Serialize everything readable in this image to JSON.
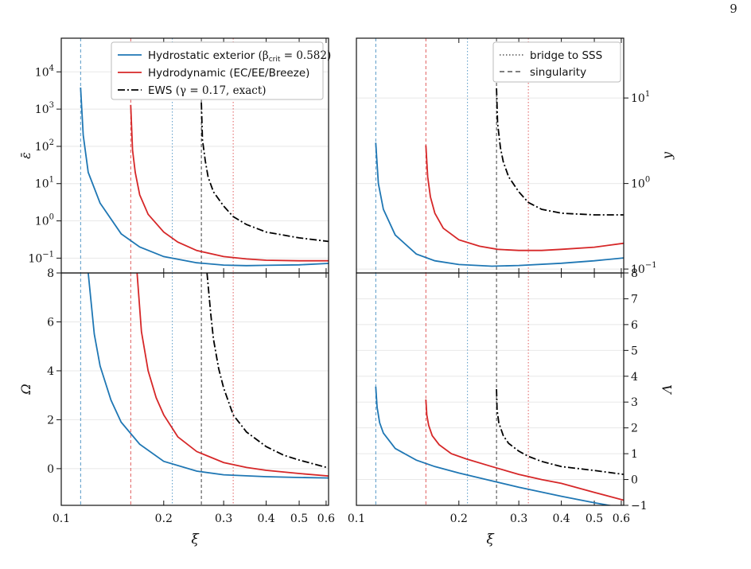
{
  "page": {
    "number": "9"
  },
  "colors": {
    "hydrostatic": "#1f77b4",
    "hydrodynamic": "#d62728",
    "ews": "#000000",
    "grid": "#e6e6e6"
  },
  "legend_left": {
    "entries": [
      {
        "name": "Hydrostatic exterior",
        "math": "(β",
        "sub": "crit",
        "math_tail": " = 0.582)",
        "style": "solid",
        "color": "#1f77b4"
      },
      {
        "name": "Hydrodynamic (EC/EE/Breeze)",
        "style": "solid",
        "color": "#d62728"
      },
      {
        "name": "EWS",
        "math": "(γ = 0.17, exact)",
        "style": "dashdot",
        "color": "#000000"
      }
    ]
  },
  "legend_right": {
    "entries": [
      {
        "name": "bridge to SSS",
        "style": "dotted"
      },
      {
        "name": "singularity",
        "style": "dashed"
      }
    ]
  },
  "chart_data": [
    {
      "type": "line",
      "panel": "top-left",
      "xlabel": "",
      "ylabel": "ε̄",
      "xscale": "log",
      "yscale": "log",
      "xlim": [
        0.1,
        0.61
      ],
      "ylim": [
        0.04,
        80000
      ],
      "yticks": [
        {
          "v": 0.1,
          "e": "−1"
        },
        {
          "v": 1,
          "e": "0"
        },
        {
          "v": 10,
          "e": "1"
        },
        {
          "v": 100,
          "e": "2"
        },
        {
          "v": 1000,
          "e": "3"
        },
        {
          "v": 10000,
          "e": "4"
        }
      ],
      "series": [
        {
          "name": "Hydrostatic exterior",
          "color": "#1f77b4",
          "style": "solid",
          "x": [
            0.114,
            0.116,
            0.12,
            0.13,
            0.15,
            0.17,
            0.2,
            0.25,
            0.3,
            0.35,
            0.4,
            0.5,
            0.61
          ],
          "y": [
            3800,
            200,
            20,
            3.0,
            0.45,
            0.2,
            0.11,
            0.075,
            0.065,
            0.063,
            0.064,
            0.066,
            0.072
          ]
        },
        {
          "name": "Hydrodynamic (EC/EE/Breeze)",
          "color": "#d62728",
          "style": "solid",
          "x": [
            0.16,
            0.162,
            0.165,
            0.17,
            0.18,
            0.2,
            0.22,
            0.25,
            0.3,
            0.35,
            0.4,
            0.5,
            0.61
          ],
          "y": [
            1300,
            80,
            20,
            5,
            1.5,
            0.5,
            0.27,
            0.16,
            0.11,
            0.095,
            0.088,
            0.085,
            0.085
          ]
        },
        {
          "name": "EWS",
          "color": "#000000",
          "style": "dashdot",
          "x": [
            0.258,
            0.26,
            0.265,
            0.27,
            0.28,
            0.3,
            0.32,
            0.35,
            0.4,
            0.5,
            0.61
          ],
          "y": [
            1500,
            150,
            40,
            15,
            6,
            2.5,
            1.3,
            0.8,
            0.5,
            0.35,
            0.28
          ]
        }
      ],
      "vlines": [
        {
          "x": 0.114,
          "color": "#1f77b4",
          "style": "dashed"
        },
        {
          "x": 0.16,
          "color": "#d62728",
          "style": "dashed"
        },
        {
          "x": 0.212,
          "color": "#1f77b4",
          "style": "dotted"
        },
        {
          "x": 0.258,
          "color": "#000000",
          "style": "dashed"
        },
        {
          "x": 0.32,
          "color": "#d62728",
          "style": "dotted"
        }
      ]
    },
    {
      "type": "line",
      "panel": "top-right",
      "xlabel": "",
      "ylabel": "y",
      "xscale": "log",
      "yscale": "log",
      "xlim": [
        0.1,
        0.61
      ],
      "ylim": [
        0.09,
        50
      ],
      "yticks": [
        {
          "v": 0.1,
          "e": "−1"
        },
        {
          "v": 1,
          "e": "0"
        },
        {
          "v": 10,
          "e": "1"
        }
      ],
      "series": [
        {
          "name": "Hydrostatic exterior",
          "color": "#1f77b4",
          "style": "solid",
          "x": [
            0.114,
            0.116,
            0.12,
            0.13,
            0.15,
            0.17,
            0.2,
            0.25,
            0.3,
            0.4,
            0.5,
            0.61
          ],
          "y": [
            3.0,
            1.0,
            0.5,
            0.25,
            0.15,
            0.125,
            0.113,
            0.108,
            0.11,
            0.117,
            0.125,
            0.135
          ]
        },
        {
          "name": "Hydrodynamic (EC/EE/Breeze)",
          "color": "#d62728",
          "style": "solid",
          "x": [
            0.16,
            0.162,
            0.165,
            0.17,
            0.18,
            0.2,
            0.23,
            0.26,
            0.3,
            0.35,
            0.4,
            0.5,
            0.61
          ],
          "y": [
            2.8,
            1.2,
            0.7,
            0.45,
            0.3,
            0.22,
            0.185,
            0.17,
            0.165,
            0.165,
            0.17,
            0.18,
            0.2
          ]
        },
        {
          "name": "EWS",
          "color": "#000000",
          "style": "dashdot",
          "x": [
            0.258,
            0.26,
            0.265,
            0.27,
            0.28,
            0.3,
            0.32,
            0.35,
            0.4,
            0.5,
            0.61
          ],
          "y": [
            13,
            5,
            2.6,
            1.8,
            1.2,
            0.8,
            0.6,
            0.5,
            0.45,
            0.43,
            0.43
          ]
        }
      ],
      "vlines": [
        {
          "x": 0.114,
          "color": "#1f77b4",
          "style": "dashed"
        },
        {
          "x": 0.16,
          "color": "#d62728",
          "style": "dashed"
        },
        {
          "x": 0.212,
          "color": "#1f77b4",
          "style": "dotted"
        },
        {
          "x": 0.258,
          "color": "#000000",
          "style": "dashed"
        },
        {
          "x": 0.32,
          "color": "#d62728",
          "style": "dotted"
        }
      ]
    },
    {
      "type": "line",
      "panel": "bottom-left",
      "xlabel": "ξ",
      "ylabel": "Ω",
      "xscale": "log",
      "yscale": "linear",
      "xlim": [
        0.1,
        0.61
      ],
      "ylim": [
        -1.5,
        8
      ],
      "yticks": [
        {
          "v": 0
        },
        {
          "v": 2
        },
        {
          "v": 4
        },
        {
          "v": 6
        },
        {
          "v": 8
        }
      ],
      "xticks": [
        {
          "v": 0.1,
          "t": "0.1"
        },
        {
          "v": 0.2,
          "t": "0.2"
        },
        {
          "v": 0.3,
          "t": "0.3"
        },
        {
          "v": 0.4,
          "t": "0.4"
        },
        {
          "v": 0.5,
          "t": "0.5"
        },
        {
          "v": 0.6,
          "t": "0.6"
        }
      ],
      "series": [
        {
          "name": "Hydrostatic exterior",
          "color": "#1f77b4",
          "style": "solid",
          "x": [
            0.12,
            0.125,
            0.13,
            0.14,
            0.15,
            0.17,
            0.2,
            0.25,
            0.3,
            0.4,
            0.5,
            0.61
          ],
          "y": [
            8,
            5.5,
            4.2,
            2.8,
            1.9,
            1.0,
            0.3,
            -0.1,
            -0.25,
            -0.33,
            -0.36,
            -0.38
          ]
        },
        {
          "name": "Hydrodynamic (EC/EE/Breeze)",
          "color": "#d62728",
          "style": "solid",
          "x": [
            0.167,
            0.172,
            0.18,
            0.19,
            0.2,
            0.22,
            0.25,
            0.3,
            0.35,
            0.4,
            0.5,
            0.61
          ],
          "y": [
            8,
            5.6,
            4.0,
            2.9,
            2.2,
            1.3,
            0.7,
            0.25,
            0.05,
            -0.07,
            -0.2,
            -0.3
          ]
        },
        {
          "name": "EWS",
          "color": "#000000",
          "style": "dashdot",
          "x": [
            0.268,
            0.275,
            0.28,
            0.29,
            0.3,
            0.32,
            0.35,
            0.4,
            0.45,
            0.5,
            0.61
          ],
          "y": [
            8,
            6.3,
            5.3,
            4.1,
            3.3,
            2.2,
            1.5,
            0.9,
            0.55,
            0.35,
            0.03
          ]
        }
      ],
      "vlines": [
        {
          "x": 0.114,
          "color": "#1f77b4",
          "style": "dashed"
        },
        {
          "x": 0.16,
          "color": "#d62728",
          "style": "dashed"
        },
        {
          "x": 0.212,
          "color": "#1f77b4",
          "style": "dotted"
        },
        {
          "x": 0.258,
          "color": "#000000",
          "style": "dashed"
        },
        {
          "x": 0.32,
          "color": "#d62728",
          "style": "dotted"
        }
      ]
    },
    {
      "type": "line",
      "panel": "bottom-right",
      "xlabel": "ξ",
      "ylabel": "Λ",
      "xscale": "log",
      "yscale": "linear",
      "xlim": [
        0.1,
        0.61
      ],
      "ylim": [
        -1,
        8
      ],
      "yticks": [
        {
          "v": -1
        },
        {
          "v": 0
        },
        {
          "v": 1
        },
        {
          "v": 2
        },
        {
          "v": 3
        },
        {
          "v": 4
        },
        {
          "v": 5
        },
        {
          "v": 6
        },
        {
          "v": 7
        },
        {
          "v": 8
        }
      ],
      "xticks": [
        {
          "v": 0.1,
          "t": "0.1"
        },
        {
          "v": 0.2,
          "t": "0.2"
        },
        {
          "v": 0.3,
          "t": "0.3"
        },
        {
          "v": 0.4,
          "t": "0.4"
        },
        {
          "v": 0.5,
          "t": "0.5"
        },
        {
          "v": 0.6,
          "t": "0.6"
        }
      ],
      "series": [
        {
          "name": "Hydrostatic exterior",
          "color": "#1f77b4",
          "style": "solid",
          "x": [
            0.114,
            0.115,
            0.117,
            0.12,
            0.13,
            0.15,
            0.17,
            0.2,
            0.25,
            0.3,
            0.4,
            0.5,
            0.61
          ],
          "y": [
            3.6,
            2.8,
            2.2,
            1.8,
            1.2,
            0.75,
            0.5,
            0.25,
            -0.05,
            -0.3,
            -0.65,
            -0.9,
            -1.1
          ]
        },
        {
          "name": "Hydrodynamic (EC/EE/Breeze)",
          "color": "#d62728",
          "style": "solid",
          "x": [
            0.16,
            0.161,
            0.163,
            0.167,
            0.175,
            0.19,
            0.21,
            0.25,
            0.3,
            0.35,
            0.4,
            0.5,
            0.61
          ],
          "y": [
            3.1,
            2.5,
            2.1,
            1.7,
            1.35,
            1.0,
            0.8,
            0.5,
            0.2,
            0.0,
            -0.15,
            -0.5,
            -0.8
          ]
        },
        {
          "name": "EWS",
          "color": "#000000",
          "style": "dashdot",
          "x": [
            0.258,
            0.259,
            0.262,
            0.27,
            0.28,
            0.3,
            0.32,
            0.35,
            0.4,
            0.5,
            0.61
          ],
          "y": [
            3.5,
            2.7,
            2.2,
            1.7,
            1.4,
            1.1,
            0.9,
            0.7,
            0.5,
            0.35,
            0.2
          ]
        }
      ],
      "vlines": [
        {
          "x": 0.114,
          "color": "#1f77b4",
          "style": "dashed"
        },
        {
          "x": 0.16,
          "color": "#d62728",
          "style": "dashed"
        },
        {
          "x": 0.212,
          "color": "#1f77b4",
          "style": "dotted"
        },
        {
          "x": 0.258,
          "color": "#000000",
          "style": "dashed"
        },
        {
          "x": 0.32,
          "color": "#d62728",
          "style": "dotted"
        }
      ]
    }
  ]
}
